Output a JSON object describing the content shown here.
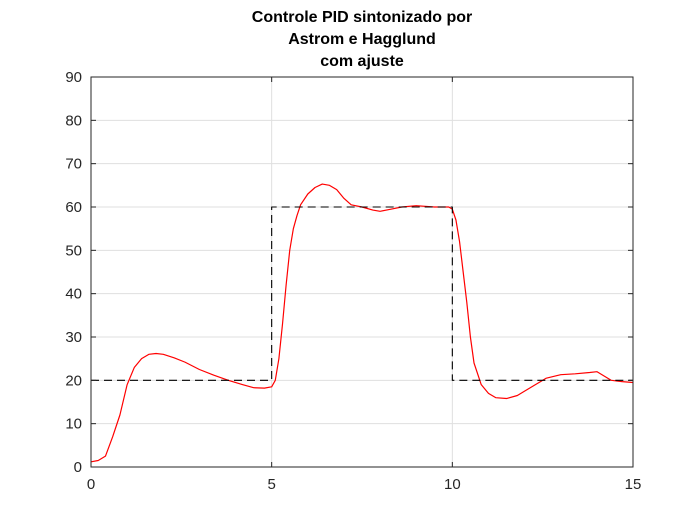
{
  "chart_data": {
    "type": "line",
    "title": [
      "Controle PID sintonizado por",
      "Astrom e Hagglund",
      "com ajuste"
    ],
    "xlabel": "",
    "ylabel": "",
    "xlim": [
      0,
      15
    ],
    "ylim": [
      0,
      90
    ],
    "xticks": [
      0,
      5,
      10,
      15
    ],
    "yticks": [
      0,
      10,
      20,
      30,
      40,
      50,
      60,
      70,
      80,
      90
    ],
    "xtick_labels": [
      "0",
      "5",
      "10",
      "15"
    ],
    "ytick_labels": [
      "0",
      "10",
      "20",
      "30",
      "40",
      "50",
      "60",
      "70",
      "80",
      "90"
    ],
    "grid": true,
    "series": [
      {
        "color": "#ff0000",
        "style": "solid",
        "points": [
          [
            0.0,
            1.2
          ],
          [
            0.2,
            1.5
          ],
          [
            0.4,
            2.5
          ],
          [
            0.6,
            7.0
          ],
          [
            0.8,
            12.0
          ],
          [
            1.0,
            19.0
          ],
          [
            1.2,
            23.0
          ],
          [
            1.4,
            25.0
          ],
          [
            1.6,
            26.0
          ],
          [
            1.8,
            26.2
          ],
          [
            2.0,
            26.0
          ],
          [
            2.3,
            25.2
          ],
          [
            2.6,
            24.2
          ],
          [
            3.0,
            22.5
          ],
          [
            3.4,
            21.2
          ],
          [
            3.8,
            20.0
          ],
          [
            4.2,
            19.0
          ],
          [
            4.5,
            18.3
          ],
          [
            4.8,
            18.2
          ],
          [
            5.0,
            18.5
          ],
          [
            5.1,
            20.0
          ],
          [
            5.2,
            25.0
          ],
          [
            5.3,
            33.0
          ],
          [
            5.4,
            42.0
          ],
          [
            5.5,
            50.0
          ],
          [
            5.6,
            55.0
          ],
          [
            5.7,
            58.0
          ],
          [
            5.8,
            60.5
          ],
          [
            6.0,
            63.0
          ],
          [
            6.2,
            64.5
          ],
          [
            6.4,
            65.3
          ],
          [
            6.6,
            65.0
          ],
          [
            6.8,
            64.0
          ],
          [
            7.0,
            62.0
          ],
          [
            7.2,
            60.5
          ],
          [
            7.5,
            60.0
          ],
          [
            7.8,
            59.3
          ],
          [
            8.0,
            59.0
          ],
          [
            8.3,
            59.5
          ],
          [
            8.6,
            60.0
          ],
          [
            9.0,
            60.3
          ],
          [
            9.5,
            60.0
          ],
          [
            9.9,
            60.0
          ],
          [
            10.0,
            59.5
          ],
          [
            10.1,
            57.0
          ],
          [
            10.2,
            52.0
          ],
          [
            10.3,
            45.0
          ],
          [
            10.4,
            38.0
          ],
          [
            10.5,
            30.0
          ],
          [
            10.6,
            24.0
          ],
          [
            10.8,
            19.0
          ],
          [
            11.0,
            17.0
          ],
          [
            11.2,
            16.0
          ],
          [
            11.5,
            15.8
          ],
          [
            11.8,
            16.5
          ],
          [
            12.0,
            17.5
          ],
          [
            12.3,
            19.0
          ],
          [
            12.6,
            20.5
          ],
          [
            13.0,
            21.3
          ],
          [
            13.4,
            21.5
          ],
          [
            13.8,
            21.8
          ],
          [
            14.0,
            22.0
          ],
          [
            14.2,
            21.0
          ],
          [
            14.4,
            20.0
          ],
          [
            14.7,
            19.7
          ],
          [
            15.0,
            19.5
          ]
        ]
      },
      {
        "color": "#000000",
        "style": "dashed",
        "points": [
          [
            0,
            20
          ],
          [
            5,
            20
          ],
          [
            5,
            60
          ],
          [
            10,
            60
          ],
          [
            10,
            20
          ],
          [
            15,
            20
          ]
        ]
      }
    ]
  }
}
